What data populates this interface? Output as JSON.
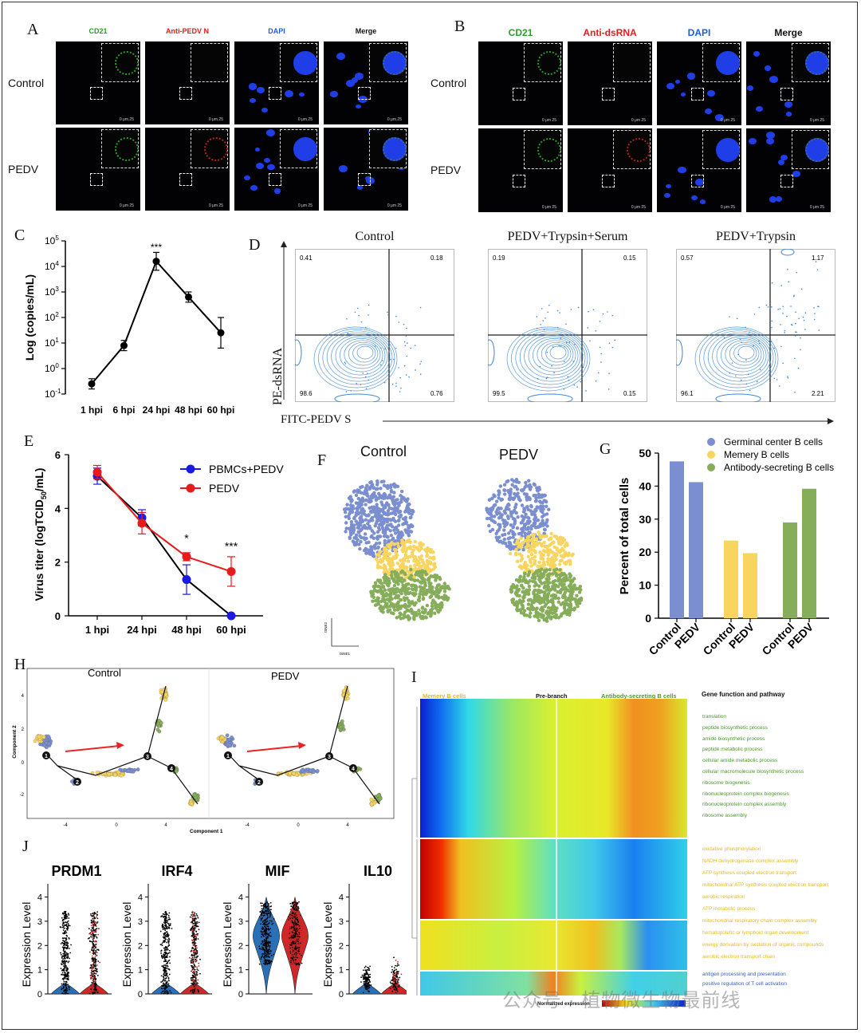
{
  "panels": {
    "A": {
      "letter": "A",
      "channels": [
        "CD21",
        "Anti-PEDV N",
        "DAPI",
        "Merge"
      ],
      "channel_colors": [
        "#2aa02a",
        "#e02020",
        "#2060d0",
        "#111111"
      ],
      "rows": [
        "Control",
        "PEDV"
      ],
      "scale": "0 μm 25"
    },
    "B": {
      "letter": "B",
      "channels": [
        "CD21",
        "Anti-dsRNA",
        "DAPI",
        "Merge"
      ],
      "channel_colors": [
        "#2aa02a",
        "#e02020",
        "#2060d0",
        "#111111"
      ],
      "rows": [
        "Control",
        "PEDV"
      ],
      "scale": "0 μm 25"
    },
    "C": {
      "letter": "C",
      "ylabel": "Log (copies/mL)",
      "significance": "***"
    },
    "D": {
      "letter": "D",
      "ylabel": "PE-dsRNA",
      "xlabel": "FITC-PEDV S",
      "plots": [
        {
          "title": "Control",
          "q": [
            "0.41",
            "0.18",
            "98.6",
            "0.76"
          ]
        },
        {
          "title": "PEDV+Trypsin+Serum",
          "q": [
            "0.19",
            "0.15",
            "99.5",
            "0.15"
          ]
        },
        {
          "title": "PEDV+Trypsin",
          "q": [
            "0.57",
            "1.17",
            "96.1",
            "2.21"
          ]
        }
      ]
    },
    "E": {
      "letter": "E",
      "ylabel": "Virus titer (logTCID",
      "ylabel_sub": "50",
      "ylabel_end": "/mL)",
      "marks": [
        "*",
        "***"
      ]
    },
    "F": {
      "letter": "F",
      "titles": [
        "Control",
        "PEDV"
      ],
      "axis_y": "tSNE2",
      "axis_x": "tSNE1"
    },
    "G": {
      "letter": "G"
    },
    "H": {
      "letter": "H",
      "titles": [
        "Control",
        "PEDV"
      ],
      "xlabel": "Component 1",
      "ylabel": "Component 2",
      "x_ticks": [
        "-4",
        "0",
        "4"
      ],
      "y_ticks": [
        "4",
        "2",
        "0",
        "-2"
      ],
      "nodes": [
        "1",
        "2",
        "3",
        "4"
      ]
    },
    "I": {
      "letter": "I",
      "header_left": "Memery B cells",
      "header_mid": "Pre-branch",
      "header_right": "Antibody-secreting B cells",
      "legend_title": "Gene function and pathway",
      "colorbar_label": "Normalized expression",
      "groups": [
        {
          "color": "#4a9a2a",
          "terms": [
            "translation",
            "peptide biosynthetic process",
            "amide biosynthetic process",
            "peptide metabolic process",
            "cellular amide metabolic process",
            "cellular macromolecule biosynthetic process",
            "ribosome biogenesis",
            "ribonucleoprotein complex biogenesis",
            "ribonucleoprotein complex assembly",
            "ribosome assembly"
          ]
        },
        {
          "color": "#e8b820",
          "terms": [
            "oxidative phosphorylation",
            "NADH dehydrogenase complex assembly",
            "ATP synthesis coupled electron transport",
            "mitochondrial ATP synthesis coupled electron transport",
            "aerobic respiration",
            "ATP metabolic process"
          ]
        },
        {
          "color": "#e8b820",
          "terms": [
            "mitochondrial respiratory chain complex assembly",
            "hematopoietic or lymphoid organ development",
            "energy derivation by oxidation of organic compounds",
            "aerobic electron transport chain"
          ]
        },
        {
          "color": "#3a5fc0",
          "terms": [
            "antigen processing and presentation",
            "positive regulation of T cell activation"
          ]
        }
      ]
    },
    "J": {
      "letter": "J",
      "genes": [
        "PRDM1",
        "IRF4",
        "MIF",
        "IL10"
      ],
      "ylabel": "Expression Level"
    }
  },
  "watermark": "公众号 · 植物微生物最前线",
  "chart_data": [
    {
      "type": "line",
      "panel": "C",
      "categories": [
        "1 hpi",
        "6 hpi",
        "24 hpi",
        "48 hpi",
        "60 hpi"
      ],
      "values_log10": [
        -0.6,
        0.9,
        4.2,
        2.8,
        1.4
      ],
      "errors_log10": [
        0.2,
        0.2,
        0.35,
        0.2,
        0.6
      ],
      "yticks": [
        "10-1",
        "100",
        "101",
        "102",
        "103",
        "104",
        "105"
      ],
      "ylim_log10": [
        -1,
        5
      ],
      "ylabel": "Log (copies/mL)",
      "annotation": "***"
    },
    {
      "type": "line",
      "panel": "E",
      "categories": [
        "1 hpi",
        "24 hpi",
        "48 hpi",
        "60 hpi"
      ],
      "series": [
        {
          "name": "PBMCs+PEDV",
          "color": "#1a1ae8",
          "values": [
            5.2,
            3.65,
            1.35,
            0.0
          ],
          "errors": [
            0.3,
            0.3,
            0.55,
            0.05
          ]
        },
        {
          "name": "PEDV",
          "color": "#e81a1a",
          "values": [
            5.35,
            3.45,
            2.2,
            1.65
          ],
          "errors": [
            0.25,
            0.4,
            0.15,
            0.55
          ]
        }
      ],
      "yticks": [
        0,
        2,
        4,
        6
      ],
      "ylim": [
        0,
        6
      ],
      "annotations": [
        "*",
        "***"
      ]
    },
    {
      "type": "bar",
      "panel": "G",
      "ylabel": "Percent of total cells",
      "ylim": [
        0,
        50
      ],
      "yticks": [
        0,
        10,
        20,
        30,
        40,
        50
      ],
      "legend": [
        {
          "name": "Germinal center B cells",
          "color": "#7b8fd0"
        },
        {
          "name": "Memery B cells",
          "color": "#f7d560"
        },
        {
          "name": "Antibody-secreting B cells",
          "color": "#86ad5a"
        }
      ],
      "categories": [
        "Control",
        "PEDV",
        "Control",
        "PEDV",
        "Control",
        "PEDV"
      ],
      "values": [
        47.5,
        41.2,
        23.5,
        19.7,
        29.0,
        39.2
      ],
      "colors_index": [
        0,
        0,
        1,
        1,
        2,
        2
      ]
    }
  ]
}
